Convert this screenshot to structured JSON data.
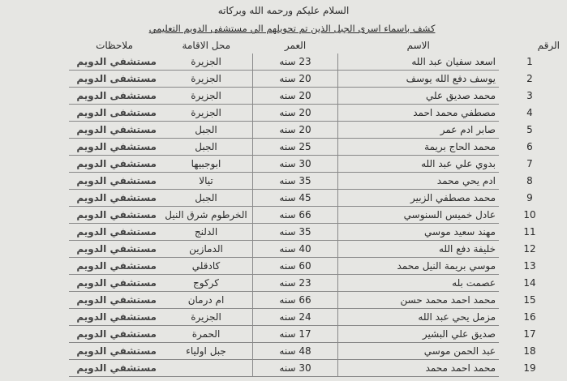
{
  "header": {
    "greeting": "السلام عليكم ورحمه الله وبركاته",
    "title": "كشف باسماء اسرى الجبل الذين تم تحويلهم الي مستشفى الدويم التعليمي"
  },
  "table": {
    "columns": [
      "الرقم",
      "الاسم",
      "العمر",
      "محل الاقامة",
      "ملاحظات"
    ],
    "rows": [
      [
        "1",
        "اسعد سفيان عبد الله",
        "23 سنه",
        "الجزيرة",
        "مستشفي الدويم"
      ],
      [
        "2",
        "يوسف دفع الله يوسف",
        "20 سنه",
        "الجزيرة",
        "مستشفى الدويم"
      ],
      [
        "3",
        "محمد صديق علي",
        "20 سنه",
        "الجزيرة",
        "مستشفى الدويم"
      ],
      [
        "4",
        "مصطفي محمد احمد",
        "20 سنه",
        "الجزيرة",
        "مستشفى الدويم"
      ],
      [
        "5",
        "صابر ادم عمر",
        "20 سنه",
        "الجبل",
        "مستشفي الدويم"
      ],
      [
        "6",
        "محمد الحاج بريمة",
        "25 سنه",
        "الجبل",
        "مستشفي الدويم"
      ],
      [
        "7",
        "بدوي علي عبد الله",
        "30 سنه",
        "ابوجبيها",
        "مستشفي الدويم"
      ],
      [
        "8",
        "ادم يحي محمد",
        "35 سنه",
        "تيالا",
        "مستشفي الدويم"
      ],
      [
        "9",
        "محمد مصطفي الزبير",
        "45 سنه",
        "الجبل",
        "مستشفي الدويم"
      ],
      [
        "10",
        "عادل خميس السنوسي",
        "66 سنه",
        "الخرطوم شرق النيل",
        "مستشفي الدويم"
      ],
      [
        "11",
        "مهند سعيد موسي",
        "35 سنه",
        "الدلنج",
        "مستشفي الدويم"
      ],
      [
        "12",
        "خليفة دفع الله",
        "40 سنه",
        "الدمازين",
        "مستشفي الدويم"
      ],
      [
        "13",
        "موسي بريمة النيل محمد",
        "60 سنه",
        "كادقلي",
        "مستشفي الدويم"
      ],
      [
        "14",
        "عصمت بله",
        "23 سنه",
        "كركوج",
        "مستشفي الدويم"
      ],
      [
        "15",
        "محمد احمد محمد حسن",
        "66 سنه",
        "ام درمان",
        "مستشفي الدويم"
      ],
      [
        "16",
        "مزمل يحي عبد الله",
        "24 سنه",
        "الجزيرة",
        "مستشفي الدويم"
      ],
      [
        "17",
        "صديق علي البشير",
        "17 سنه",
        "الحمرة",
        "مستشفي الدويم"
      ],
      [
        "18",
        "عبد الحمن موسي",
        "48 سنه",
        "جبل اولياء",
        "مستشفي الدويم"
      ],
      [
        "19",
        "محمد احمد محمد",
        "30 سنه",
        "",
        "مستشفي الدويم"
      ]
    ]
  }
}
